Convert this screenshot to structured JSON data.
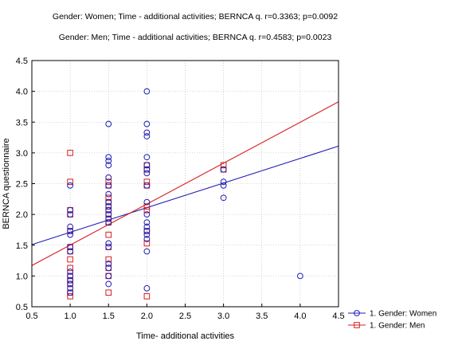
{
  "chart_data": {
    "type": "scatter",
    "title_lines": [
      "Gender: Women; Time - additional activities; BERNCA q. r=0.3363; p=0.0092",
      "Gender: Men; Time - additional activities; BERNCA q. r=0.4583; p=0.0023"
    ],
    "xlabel": "Time- additional activities",
    "ylabel": "BERNCA questionnaire",
    "xlim": [
      0.5,
      4.5
    ],
    "ylim": [
      0.5,
      4.5
    ],
    "xticks": [
      "0.5",
      "1.0",
      "1.5",
      "2.0",
      "2.5",
      "3.0",
      "3.5",
      "4.0",
      "4.5"
    ],
    "yticks": [
      "0.5",
      "1.0",
      "1.5",
      "2.0",
      "2.5",
      "3.0",
      "3.5",
      "4.0",
      "4.5"
    ],
    "grid": true,
    "legend_position": "bottom-right",
    "series": [
      {
        "name": "1. Gender: Women",
        "marker": "circle",
        "color": "#1f1fb4",
        "points": [
          [
            1.0,
            2.47
          ],
          [
            1.0,
            2.07
          ],
          [
            1.0,
            2.0
          ],
          [
            1.0,
            1.8
          ],
          [
            1.0,
            1.73
          ],
          [
            1.0,
            1.67
          ],
          [
            1.0,
            1.47
          ],
          [
            1.0,
            1.4
          ],
          [
            1.0,
            1.07
          ],
          [
            1.0,
            1.0
          ],
          [
            1.0,
            0.93
          ],
          [
            1.0,
            0.87
          ],
          [
            1.0,
            0.8
          ],
          [
            1.0,
            0.73
          ],
          [
            1.5,
            3.47
          ],
          [
            1.5,
            2.93
          ],
          [
            1.5,
            2.87
          ],
          [
            1.5,
            2.8
          ],
          [
            1.5,
            2.6
          ],
          [
            1.5,
            2.47
          ],
          [
            1.5,
            2.33
          ],
          [
            1.5,
            2.2
          ],
          [
            1.5,
            2.13
          ],
          [
            1.5,
            2.07
          ],
          [
            1.5,
            2.0
          ],
          [
            1.5,
            1.93
          ],
          [
            1.5,
            1.87
          ],
          [
            1.5,
            1.53
          ],
          [
            1.5,
            1.47
          ],
          [
            1.5,
            1.2
          ],
          [
            1.5,
            1.13
          ],
          [
            1.5,
            1.0
          ],
          [
            1.5,
            0.87
          ],
          [
            2.0,
            4.0
          ],
          [
            2.0,
            3.47
          ],
          [
            2.0,
            3.33
          ],
          [
            2.0,
            3.27
          ],
          [
            2.0,
            2.93
          ],
          [
            2.0,
            2.8
          ],
          [
            2.0,
            2.73
          ],
          [
            2.0,
            2.67
          ],
          [
            2.0,
            2.47
          ],
          [
            2.0,
            2.2
          ],
          [
            2.0,
            2.0
          ],
          [
            2.0,
            1.87
          ],
          [
            2.0,
            1.8
          ],
          [
            2.0,
            1.73
          ],
          [
            2.0,
            1.67
          ],
          [
            2.0,
            1.6
          ],
          [
            2.0,
            1.4
          ],
          [
            2.0,
            0.8
          ],
          [
            3.0,
            2.73
          ],
          [
            3.0,
            2.53
          ],
          [
            3.0,
            2.47
          ],
          [
            3.0,
            2.27
          ],
          [
            4.0,
            1.0
          ]
        ],
        "regression": {
          "x0": 0.5,
          "y0": 1.51,
          "x1": 4.5,
          "y1": 3.11
        }
      },
      {
        "name": "1. Gender: Men",
        "marker": "square",
        "color": "#d42020",
        "points": [
          [
            1.0,
            3.0
          ],
          [
            1.0,
            2.53
          ],
          [
            1.0,
            2.07
          ],
          [
            1.0,
            2.0
          ],
          [
            1.0,
            1.73
          ],
          [
            1.0,
            1.47
          ],
          [
            1.0,
            1.4
          ],
          [
            1.0,
            1.27
          ],
          [
            1.0,
            1.13
          ],
          [
            1.0,
            1.0
          ],
          [
            1.0,
            0.93
          ],
          [
            1.0,
            0.87
          ],
          [
            1.0,
            0.73
          ],
          [
            1.0,
            0.67
          ],
          [
            1.5,
            2.53
          ],
          [
            1.5,
            2.47
          ],
          [
            1.5,
            2.27
          ],
          [
            1.5,
            2.2
          ],
          [
            1.5,
            2.13
          ],
          [
            1.5,
            2.07
          ],
          [
            1.5,
            2.0
          ],
          [
            1.5,
            1.93
          ],
          [
            1.5,
            1.87
          ],
          [
            1.5,
            1.67
          ],
          [
            1.5,
            1.47
          ],
          [
            1.5,
            1.27
          ],
          [
            1.5,
            1.13
          ],
          [
            1.5,
            1.0
          ],
          [
            1.5,
            0.73
          ],
          [
            2.0,
            2.8
          ],
          [
            2.0,
            2.73
          ],
          [
            2.0,
            2.53
          ],
          [
            2.0,
            2.47
          ],
          [
            2.0,
            2.13
          ],
          [
            2.0,
            2.07
          ],
          [
            2.0,
            1.73
          ],
          [
            2.0,
            1.53
          ],
          [
            2.0,
            0.67
          ],
          [
            3.0,
            2.8
          ],
          [
            3.0,
            2.73
          ]
        ],
        "regression": {
          "x0": 0.5,
          "y0": 1.17,
          "x1": 4.5,
          "y1": 3.83
        }
      }
    ]
  }
}
